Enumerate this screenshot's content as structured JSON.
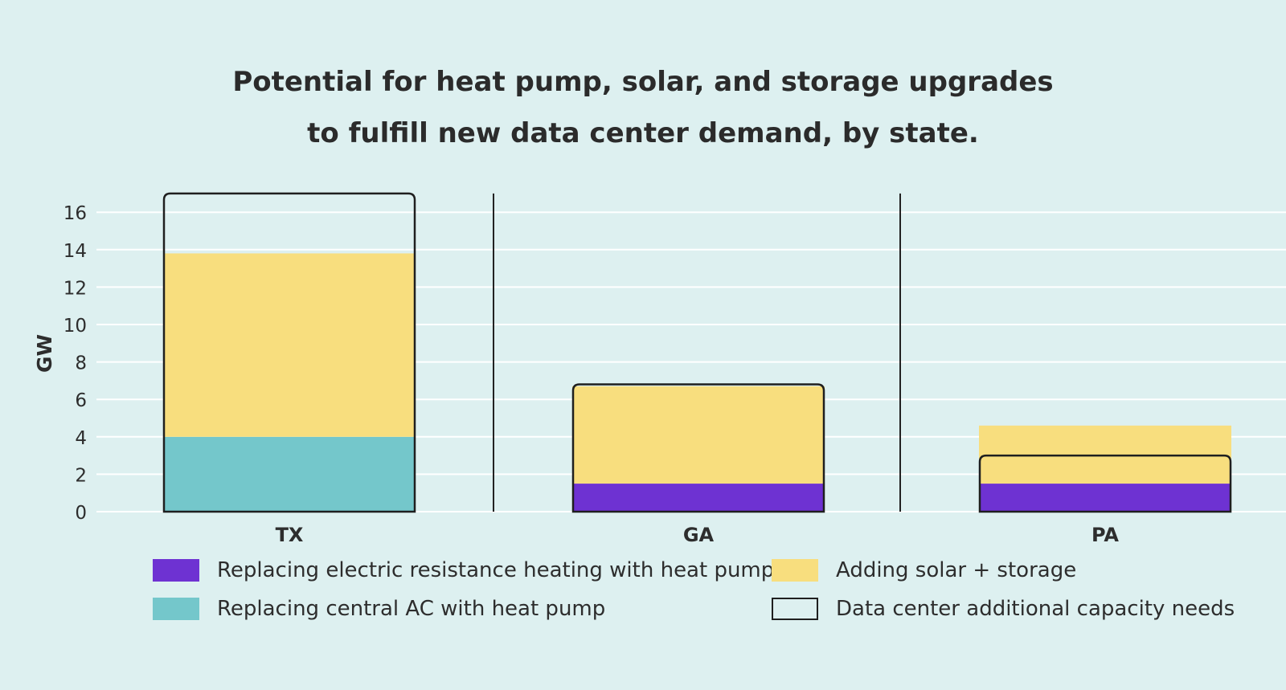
{
  "title": {
    "line1": "Potential for heat pump, solar, and storage upgrades",
    "line2": "to fulfill new data center demand, by state."
  },
  "colors": {
    "background": "#ddf0f0",
    "heat_pump_resistance": "#6e32d2",
    "heat_pump_central_ac": "#74c7cb",
    "solar_storage": "#f8de7e",
    "capacity_outline": "#1f1f1f",
    "gridline": "#ffffff"
  },
  "chart_data": {
    "type": "bar",
    "stacked": true,
    "ylabel": "GW",
    "ylim": [
      0,
      17
    ],
    "yticks": [
      0,
      2,
      4,
      6,
      8,
      10,
      12,
      14,
      16
    ],
    "grid": true,
    "categories": [
      "TX",
      "GA",
      "PA"
    ],
    "series": [
      {
        "name": "Replacing electric resistance heating with heat pump",
        "key": "heat_pump_resistance",
        "values": [
          0,
          1.5,
          1.5
        ]
      },
      {
        "name": "Replacing central AC with heat pump",
        "key": "heat_pump_central_ac",
        "values": [
          4.0,
          0,
          0
        ]
      },
      {
        "name": "Adding solar + storage",
        "key": "solar_storage",
        "values": [
          9.8,
          5.2,
          3.1
        ]
      }
    ],
    "capacity_needs": {
      "name": "Data center additional capacity needs",
      "values": [
        17.0,
        6.8,
        3.0
      ]
    },
    "legend_position": "bottom"
  },
  "legend": [
    {
      "label": "Replacing electric resistance heating with heat pump",
      "key": "heat_pump_resistance"
    },
    {
      "label": "Adding solar + storage",
      "key": "solar_storage"
    },
    {
      "label": "Replacing central AC with heat pump",
      "key": "heat_pump_central_ac"
    },
    {
      "label": "Data center additional capacity needs",
      "key": "outline"
    }
  ]
}
